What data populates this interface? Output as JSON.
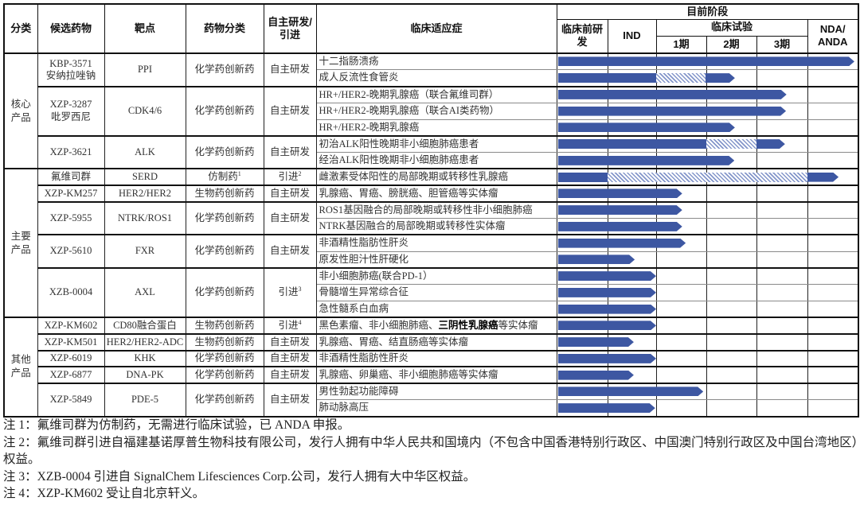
{
  "table": {
    "header": {
      "category": "分类",
      "candidate": "候选药物",
      "target": "靶点",
      "drug_type": "药物分类",
      "source_line1": "自主研发/",
      "source_line2": "引进",
      "indication": "临床适应症",
      "current_stage": "目前阶段",
      "preclinical_line1": "临床前研",
      "preclinical_line2": "发",
      "ind": "IND",
      "clinical_trial": "临床试验",
      "phase1": "1期",
      "phase2": "2期",
      "phase3": "3期",
      "nda_line1": "NDA/",
      "nda_line2": "ANDA"
    },
    "groups": [
      {
        "label": "核心产品",
        "drugs": [
          {
            "name": "KBP-3571",
            "cn_name": "安纳拉唑钠",
            "target": "PPI",
            "type": "化学药创新药",
            "source": "自主研发",
            "indications": [
              {
                "text": "十二指肠溃疡"
              },
              {
                "text": "成人反流性食管炎"
              }
            ]
          },
          {
            "name": "XZP-3287",
            "cn_name": "吡罗西尼",
            "target": "CDK4/6",
            "type": "化学药创新药",
            "source": "自主研发",
            "indications": [
              {
                "text": "HR+/HER2-晚期乳腺癌（联合氟维司群）"
              },
              {
                "text": "HR+/HER2-晚期乳腺癌（联合AI类药物）"
              },
              {
                "text": "HR+/HER2-晚期乳腺癌"
              }
            ]
          },
          {
            "name": "XZP-3621",
            "target": "ALK",
            "type": "化学药创新药",
            "source": "自主研发",
            "indications": [
              {
                "text": "初治ALK阳性晚期非小细胞肺癌患者"
              },
              {
                "text": "经治ALK阳性晚期非小细胞肺癌患者"
              }
            ]
          }
        ]
      },
      {
        "label": "主要产品",
        "drugs": [
          {
            "name": "氟维司群",
            "target": "SERD",
            "type": "仿制药",
            "type_note": "1",
            "source": "引进",
            "source_note": "2",
            "indications": [
              {
                "text": "雌激素受体阳性的局部晚期或转移性乳腺癌"
              }
            ]
          },
          {
            "name": "XZP-KM257",
            "target": "HER2/HER2",
            "type": "生物药创新药",
            "source": "自主研发",
            "indications": [
              {
                "text": "乳腺癌、胃癌、膀胱癌、胆管癌等实体瘤"
              }
            ]
          },
          {
            "name": "XZP-5955",
            "target": "NTRK/ROS1",
            "type": "化学药创新药",
            "source": "自主研发",
            "indications": [
              {
                "text": "ROS1基因融合的局部晚期或转移性非小细胞肺癌"
              },
              {
                "text": "NTRK基因融合的局部晚期或转移性实体瘤"
              }
            ]
          },
          {
            "name": "XZP-5610",
            "target": "FXR",
            "type": "化学药创新药",
            "source": "自主研发",
            "indications": [
              {
                "text": "非酒精性脂肪性肝炎"
              },
              {
                "text": "原发性胆汁性肝硬化"
              }
            ]
          },
          {
            "name": "XZB-0004",
            "target": "AXL",
            "type": "化学药创新药",
            "source": "引进",
            "source_note": "3",
            "indications": [
              {
                "text": "非小细胞肺癌(联合PD-1）"
              },
              {
                "text": "骨髓增生异常综合征"
              },
              {
                "text": "急性髓系白血病"
              }
            ]
          }
        ]
      },
      {
        "label": "其他产品",
        "drugs": [
          {
            "name": "XZP-KM602",
            "target": "CD80融合蛋白",
            "type": "生物药创新药",
            "source": "引进",
            "source_note": "4",
            "indications": [
              {
                "text_pre": "黑色素瘤、非小细胞肺癌、",
                "text_bold": "三阴性乳腺癌",
                "text_post": "等实体瘤"
              }
            ]
          },
          {
            "name": "XZP-KM501",
            "target": "HER2/HER2-ADC",
            "type": "生物药创新药",
            "source": "自主研发",
            "indications": [
              {
                "text": "乳腺癌、胃癌、结直肠癌等实体瘤"
              }
            ]
          },
          {
            "name": "XZP-6019",
            "target": "KHK",
            "type": "化学药创新药",
            "source": "自主研发",
            "indications": [
              {
                "text": "非酒精性脂肪性肝炎"
              }
            ]
          },
          {
            "name": "XZP-6877",
            "target": "DNA-PK",
            "type": "化学药创新药",
            "source": "自主研发",
            "indications": [
              {
                "text": "乳腺癌、卵巢癌、非小细胞肺癌等实体瘤"
              }
            ]
          },
          {
            "name": "XZP-5849",
            "target": "PDE-5",
            "type": "化学药创新药",
            "source": "自主研发",
            "indications": [
              {
                "text": "男性勃起功能障碍"
              },
              {
                "text": "肺动脉高压"
              }
            ]
          }
        ]
      }
    ]
  },
  "notes": [
    "注 1：氟维司群为仿制药，无需进行临床试验，已 ANDA 申报。",
    "注 2：氟维司群引进自福建基诺厚普生物科技有限公司，发行人拥有中华人民共和国境内（不包含中国香港特别行政区、中国澳门特别行政区及中国台湾地区）权益。",
    "注 3：XZB-0004 引进自 SignalChem Lifesciences Corp.公司，发行人拥有大中华区权益。",
    "注 4：XZP-KM602 受让自北京轩义。"
  ],
  "chart_data": {
    "type": "bar",
    "orientation": "horizontal",
    "title": "目前阶段",
    "stages": [
      "临床前研发",
      "IND",
      "1期",
      "2期",
      "3期",
      "NDA/ANDA"
    ],
    "stage_groups": {
      "临床试验": [
        "1期",
        "2期",
        "3期"
      ]
    },
    "colors": {
      "solid": "#3D57A2",
      "hatched": "#8496CA"
    },
    "rows": [
      {
        "drug": "KBP-3571",
        "label": "十二指肠溃疡",
        "segments": [
          {
            "from": 0.03,
            "to": 5.92,
            "style": "solid"
          }
        ]
      },
      {
        "drug": "KBP-3571",
        "label": "成人反流性食管炎",
        "segments": [
          {
            "from": 0.03,
            "to": 2.0,
            "style": "solid"
          },
          {
            "from": 2.0,
            "to": 2.98,
            "style": "hatched"
          },
          {
            "from": 2.98,
            "to": 3.57,
            "style": "solid"
          }
        ]
      },
      {
        "drug": "XZP-3287",
        "label": "HR+/HER2-晚期乳腺癌（联合氟维司群）",
        "segments": [
          {
            "from": 0.03,
            "to": 4.59,
            "style": "solid"
          }
        ]
      },
      {
        "drug": "XZP-3287",
        "label": "HR+/HER2-晚期乳腺癌（联合AI类药物）",
        "segments": [
          {
            "from": 0.03,
            "to": 4.58,
            "style": "solid"
          }
        ]
      },
      {
        "drug": "XZP-3287",
        "label": "HR+/HER2-晚期乳腺癌",
        "segments": [
          {
            "from": 0.03,
            "to": 3.57,
            "style": "solid"
          }
        ]
      },
      {
        "drug": "XZP-3621",
        "label": "初治ALK阳性晚期非小细胞肺癌患者",
        "segments": [
          {
            "from": 0.03,
            "to": 3.0,
            "style": "solid"
          },
          {
            "from": 3.0,
            "to": 4.0,
            "style": "hatched"
          },
          {
            "from": 4.0,
            "to": 4.56,
            "style": "solid"
          }
        ]
      },
      {
        "drug": "XZP-3621",
        "label": "经治ALK阳性晚期非小细胞肺癌患者",
        "segments": [
          {
            "from": 0.03,
            "to": 3.56,
            "style": "solid"
          }
        ]
      },
      {
        "drug": "氟维司群",
        "label": "雌激素受体阳性的局部晚期或转移性乳腺癌",
        "segments": [
          {
            "from": 0.03,
            "to": 1.0,
            "style": "solid"
          },
          {
            "from": 1.0,
            "to": 5.0,
            "style": "hatched"
          },
          {
            "from": 5.0,
            "to": 5.61,
            "style": "solid"
          }
        ]
      },
      {
        "drug": "XZP-KM257",
        "label": "乳腺癌、胃癌、膀胱癌、胆管癌等实体瘤",
        "segments": [
          {
            "from": 0.03,
            "to": 2.52,
            "style": "solid"
          }
        ]
      },
      {
        "drug": "XZP-5955",
        "label": "ROS1基因融合的局部晚期或转移性非小细胞肺癌",
        "segments": [
          {
            "from": 0.03,
            "to": 2.52,
            "style": "solid"
          }
        ]
      },
      {
        "drug": "XZP-5955",
        "label": "NTRK基因融合的局部晚期或转移性实体瘤",
        "segments": [
          {
            "from": 0.03,
            "to": 2.52,
            "style": "solid"
          }
        ]
      },
      {
        "drug": "XZP-5610",
        "label": "非酒精性脂肪性肝炎",
        "segments": [
          {
            "from": 0.03,
            "to": 2.59,
            "style": "solid"
          }
        ]
      },
      {
        "drug": "XZP-5610",
        "label": "原发性胆汁性肝硬化",
        "segments": [
          {
            "from": 0.03,
            "to": 1.56,
            "style": "solid"
          }
        ]
      },
      {
        "drug": "XZB-0004",
        "label": "非小细胞肺癌(联合PD-1）",
        "segments": [
          {
            "from": 0.03,
            "to": 2.0,
            "style": "solid"
          }
        ]
      },
      {
        "drug": "XZB-0004",
        "label": "骨髓增生异常综合征",
        "segments": [
          {
            "from": 0.03,
            "to": 2.0,
            "style": "solid"
          }
        ]
      },
      {
        "drug": "XZB-0004",
        "label": "急性髓系白血病",
        "segments": [
          {
            "from": 0.03,
            "to": 2.0,
            "style": "solid"
          }
        ]
      },
      {
        "drug": "XZP-KM602",
        "label": "黑色素瘤、非小细胞肺癌、三阴性乳腺癌等实体瘤",
        "segments": [
          {
            "from": 0.03,
            "to": 2.0,
            "style": "solid"
          }
        ]
      },
      {
        "drug": "XZP-KM501",
        "label": "乳腺癌、胃癌、结直肠癌等实体瘤",
        "segments": [
          {
            "from": 0.03,
            "to": 1.54,
            "style": "solid"
          }
        ]
      },
      {
        "drug": "XZP-6019",
        "label": "非酒精性脂肪性肝炎",
        "segments": [
          {
            "from": 0.03,
            "to": 2.0,
            "style": "solid"
          }
        ]
      },
      {
        "drug": "XZP-6877",
        "label": "乳腺癌、卵巢癌、非小细胞肺癌等实体瘤",
        "segments": [
          {
            "from": 0.03,
            "to": 1.54,
            "style": "solid"
          }
        ]
      },
      {
        "drug": "XZP-5849",
        "label": "男性勃起功能障碍",
        "segments": [
          {
            "from": 0.03,
            "to": 2.94,
            "style": "solid"
          }
        ]
      },
      {
        "drug": "XZP-5849",
        "label": "肺动脉高压",
        "segments": [
          {
            "from": 0.03,
            "to": 1.98,
            "style": "solid"
          }
        ]
      }
    ]
  }
}
